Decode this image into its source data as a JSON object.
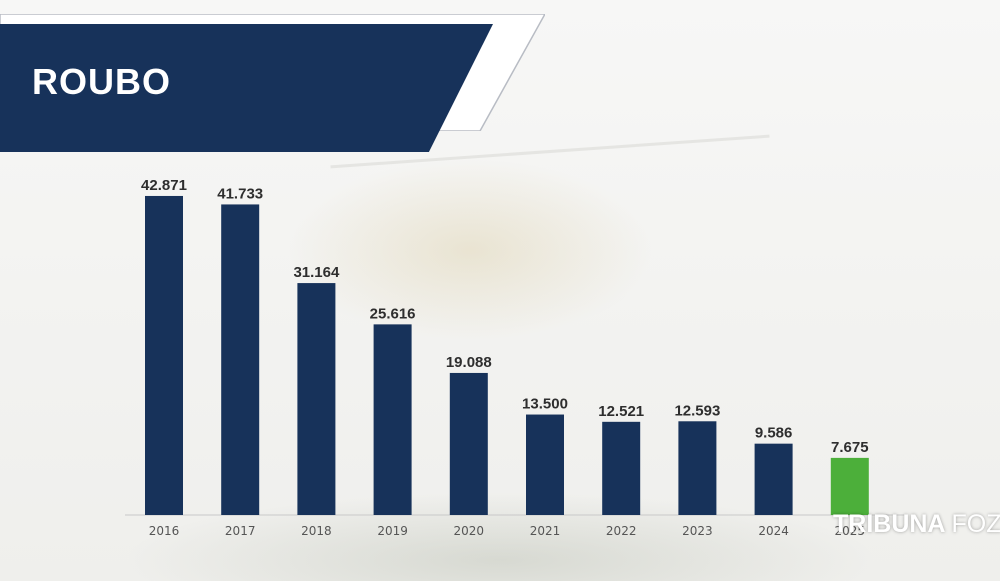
{
  "chart_data": {
    "type": "bar",
    "title": "ROUBO",
    "categories": [
      "2016",
      "2017",
      "2018",
      "2019",
      "2020",
      "2021",
      "2022",
      "2023",
      "2024",
      "2025"
    ],
    "values": [
      42871,
      41733,
      31164,
      25616,
      19088,
      13500,
      12521,
      12593,
      9586,
      7675
    ],
    "value_labels": [
      "42.871",
      "41.733",
      "31.164",
      "25.616",
      "19.088",
      "13.500",
      "12.521",
      "12.593",
      "9.586",
      "7.675"
    ],
    "ylim": [
      0,
      43000
    ],
    "grid": false,
    "colors": {
      "bar": "#17325a",
      "highlight_bar": "#4caf3a",
      "highlight_index": 9,
      "title_banner": "#17325a",
      "value_label": "#2e2e2e",
      "tick_label": "#555555"
    }
  },
  "watermark": {
    "brand_bold": "TRIBUNA",
    "brand_light": "FOZ"
  }
}
